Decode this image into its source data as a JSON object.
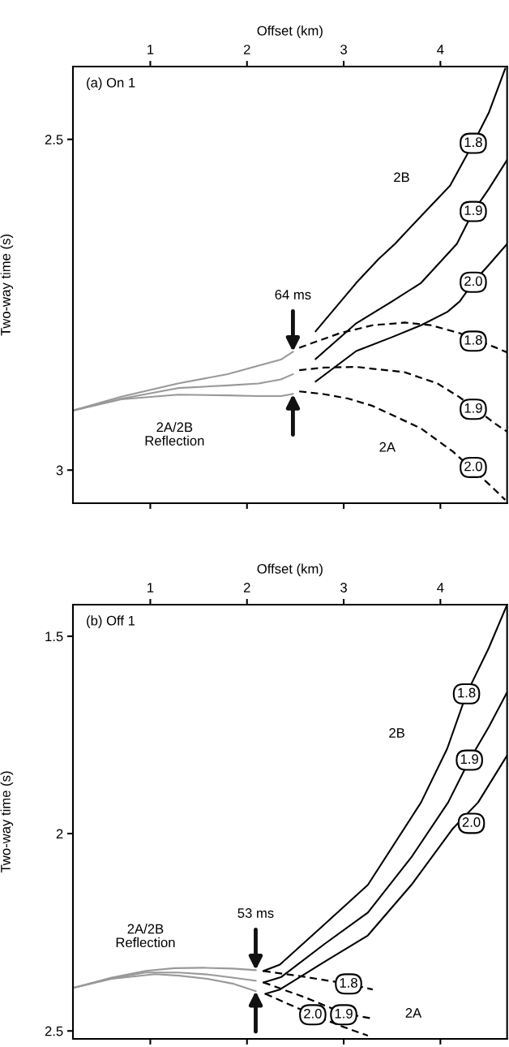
{
  "chart_data": [
    {
      "type": "line",
      "title": "(a) On 1",
      "xlabel": "Offset (km)",
      "ylabel": "Two-way time (s)",
      "xlim": [
        0.2,
        4.69
      ],
      "ylim": [
        3.05,
        2.39
      ],
      "xticks": [
        1,
        2,
        3,
        4
      ],
      "yticks": [
        2.5,
        3
      ],
      "grid": false,
      "legend": false,
      "series": [
        {
          "color": "#999999",
          "line_style": "solid",
          "x": [
            0.2,
            0.7,
            1.285,
            1.8,
            2.12,
            2.35,
            2.475
          ],
          "values": [
            2.91,
            2.889,
            2.869,
            2.855,
            2.842,
            2.833,
            2.821
          ]
        },
        {
          "color": "#999999",
          "line_style": "solid",
          "x": [
            0.2,
            0.7,
            1.285,
            1.8,
            2.12,
            2.35,
            2.475
          ],
          "values": [
            2.91,
            2.892,
            2.876,
            2.872,
            2.869,
            2.863,
            2.855
          ]
        },
        {
          "color": "#999999",
          "line_style": "solid",
          "x": [
            0.2,
            0.7,
            1.285,
            1.8,
            2.12,
            2.35,
            2.475
          ],
          "values": [
            2.91,
            2.893,
            2.886,
            2.887,
            2.888,
            2.888,
            2.885
          ]
        },
        {
          "color": "#000000",
          "line_style": "solid",
          "x": [
            2.71,
            3.13,
            3.36,
            3.53,
            3.8,
            4.1,
            4.34,
            4.5,
            4.67
          ],
          "values": [
            2.79,
            2.717,
            2.681,
            2.658,
            2.616,
            2.57,
            2.506,
            2.46,
            2.393
          ]
        },
        {
          "color": "#000000",
          "line_style": "solid",
          "x": [
            2.71,
            3.13,
            3.5,
            3.8,
            4.17,
            4.34,
            4.5,
            4.69
          ],
          "values": [
            2.832,
            2.778,
            2.745,
            2.717,
            2.658,
            2.609,
            2.575,
            2.531
          ]
        },
        {
          "color": "#000000",
          "line_style": "solid",
          "x": [
            2.71,
            3.13,
            3.5,
            3.8,
            4.07,
            4.2,
            4.34,
            4.5,
            4.69
          ],
          "values": [
            2.866,
            2.82,
            2.799,
            2.781,
            2.761,
            2.745,
            2.716,
            2.69,
            2.658
          ]
        },
        {
          "color": "#000000",
          "line_style": "dashed",
          "x": [
            2.54,
            2.96,
            3.3,
            3.63,
            3.9,
            4.2,
            4.56,
            4.69
          ],
          "values": [
            2.815,
            2.793,
            2.781,
            2.777,
            2.781,
            2.793,
            2.814,
            2.822
          ]
        },
        {
          "color": "#000000",
          "line_style": "dashed",
          "x": [
            2.54,
            2.8,
            3.13,
            3.63,
            3.97,
            4.2,
            4.56,
            4.69
          ],
          "values": [
            2.849,
            2.845,
            2.844,
            2.852,
            2.869,
            2.89,
            2.929,
            2.942
          ]
        },
        {
          "color": "#000000",
          "line_style": "dashed",
          "x": [
            2.54,
            2.79,
            3.05,
            3.3,
            3.8,
            4.13,
            4.53,
            4.67
          ],
          "values": [
            2.881,
            2.885,
            2.892,
            2.903,
            2.937,
            2.972,
            3.025,
            3.045
          ]
        }
      ],
      "annotations": [
        {
          "text": "64 ms",
          "x": 2.475,
          "y": 2.821
        },
        "2B",
        "2A",
        "2A/2B\nReflection",
        {
          "text": "1.8",
          "x": 4.34,
          "y": 2.506
        },
        {
          "text": "1.9",
          "x": 4.34,
          "y": 2.609
        },
        {
          "text": "2.0",
          "x": 4.34,
          "y": 2.716
        },
        {
          "text": "1.8",
          "x": 4.34,
          "y": 2.805
        },
        {
          "text": "1.9",
          "x": 4.34,
          "y": 2.908
        },
        {
          "text": "2.0",
          "x": 4.34,
          "y": 2.996
        }
      ]
    },
    {
      "type": "line",
      "title": "(b) Off 1",
      "xlabel": "Offset (km)",
      "ylabel": "Two-way time (s)",
      "xlim": [
        0.2,
        4.69
      ],
      "ylim": [
        2.52,
        1.42
      ],
      "xticks": [
        1,
        2,
        3,
        4
      ],
      "yticks": [
        1.5,
        2,
        2.5
      ],
      "grid": false,
      "legend": false,
      "series": [
        {
          "color": "#999999",
          "line_style": "solid",
          "x": [
            0.2,
            0.6,
            0.95,
            1.25,
            1.55,
            1.85,
            2.09
          ],
          "values": [
            2.391,
            2.365,
            2.348,
            2.341,
            2.34,
            2.342,
            2.346
          ]
        },
        {
          "color": "#999999",
          "line_style": "solid",
          "x": [
            0.2,
            0.6,
            0.95,
            1.29,
            1.6,
            1.85,
            2.09
          ],
          "values": [
            2.391,
            2.367,
            2.352,
            2.352,
            2.357,
            2.365,
            2.373
          ]
        },
        {
          "color": "#999999",
          "line_style": "solid",
          "x": [
            0.2,
            0.6,
            1.05,
            1.3,
            1.59,
            1.85,
            2.09
          ],
          "values": [
            2.391,
            2.368,
            2.356,
            2.36,
            2.368,
            2.38,
            2.399
          ]
        },
        {
          "color": "#000000",
          "line_style": "solid",
          "x": [
            2.17,
            2.34,
            2.8,
            3.25,
            3.8,
            4.07,
            4.27,
            4.5,
            4.69
          ],
          "values": [
            2.348,
            2.332,
            2.23,
            2.13,
            1.921,
            1.785,
            1.646,
            1.53,
            1.42
          ]
        },
        {
          "color": "#000000",
          "line_style": "solid",
          "x": [
            2.17,
            2.35,
            2.8,
            3.25,
            3.7,
            4.08,
            4.3,
            4.5,
            4.69
          ],
          "values": [
            2.377,
            2.364,
            2.28,
            2.2,
            2.06,
            1.921,
            1.814,
            1.73,
            1.642
          ]
        },
        {
          "color": "#000000",
          "line_style": "solid",
          "x": [
            2.19,
            2.34,
            2.8,
            3.25,
            3.7,
            4.13,
            4.39,
            4.69
          ],
          "values": [
            2.406,
            2.395,
            2.325,
            2.258,
            2.13,
            1.987,
            1.921,
            1.802
          ]
        },
        {
          "color": "#000000",
          "line_style": "dashed",
          "x": [
            2.17,
            2.6,
            3.05,
            3.3
          ],
          "values": [
            2.348,
            2.363,
            2.381,
            2.395
          ]
        },
        {
          "color": "#000000",
          "line_style": "dashed",
          "x": [
            2.17,
            2.6,
            3.0,
            3.3
          ],
          "values": [
            2.377,
            2.415,
            2.455,
            2.469
          ]
        },
        {
          "color": "#000000",
          "line_style": "dashed",
          "x": [
            2.19,
            2.68,
            3.0,
            3.25
          ],
          "values": [
            2.406,
            2.459,
            2.49,
            2.512
          ]
        }
      ],
      "annotations": [
        {
          "text": "53 ms",
          "x": 2.09,
          "y": 2.346
        },
        "2B",
        "2A",
        "2A/2B\nReflection",
        {
          "text": "1.8",
          "x": 4.27,
          "y": 1.646
        },
        {
          "text": "1.9",
          "x": 4.3,
          "y": 1.814
        },
        {
          "text": "2.0",
          "x": 4.32,
          "y": 1.974
        },
        {
          "text": "1.8",
          "x": 3.05,
          "y": 2.381
        },
        {
          "text": "1.9",
          "x": 3.0,
          "y": 2.459
        },
        {
          "text": "2.0",
          "x": 2.68,
          "y": 2.459
        }
      ]
    }
  ]
}
